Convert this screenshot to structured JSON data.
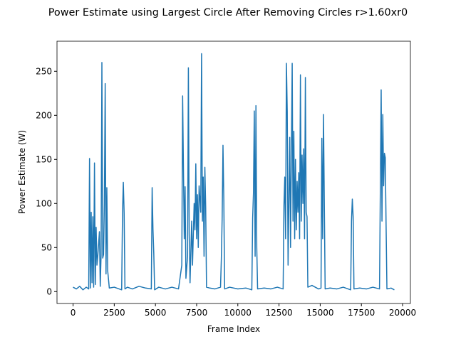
{
  "chart_data": {
    "type": "line",
    "title": "Power Estimate using Largest Circle After Removing Circles r>1.60xr0",
    "x_label": "Frame Index",
    "y_label": "Power Estimate (W)",
    "color": "#1f77b4",
    "x": [
      0,
      200,
      400,
      600,
      800,
      950,
      1000,
      1050,
      1100,
      1150,
      1200,
      1250,
      1300,
      1350,
      1400,
      1450,
      1500,
      1600,
      1650,
      1700,
      1750,
      1800,
      1850,
      1900,
      1950,
      2000,
      2050,
      2100,
      2200,
      2500,
      2800,
      2950,
      3000,
      3050,
      3100,
      3150,
      3300,
      3600,
      4000,
      4400,
      4750,
      4800,
      4850,
      4900,
      4950,
      5200,
      5600,
      6000,
      6400,
      6600,
      6650,
      6700,
      6750,
      6800,
      6850,
      6950,
      7000,
      7050,
      7100,
      7200,
      7250,
      7350,
      7400,
      7450,
      7500,
      7550,
      7600,
      7650,
      7750,
      7800,
      7850,
      7900,
      7950,
      8000,
      8050,
      8100,
      8300,
      8600,
      8950,
      9000,
      9050,
      9100,
      9150,
      9200,
      9500,
      10000,
      10500,
      10850,
      10900,
      10950,
      11000,
      11050,
      11100,
      11150,
      11200,
      11600,
      12000,
      12400,
      12750,
      12800,
      12850,
      12900,
      12950,
      13000,
      13050,
      13150,
      13200,
      13300,
      13350,
      13400,
      13450,
      13500,
      13550,
      13600,
      13650,
      13700,
      13750,
      13800,
      13850,
      13900,
      13950,
      14000,
      14050,
      14100,
      14150,
      14200,
      14250,
      14500,
      14900,
      15050,
      15100,
      15150,
      15200,
      15250,
      15300,
      15600,
      16000,
      16400,
      16850,
      16900,
      16950,
      17000,
      17050,
      17400,
      17800,
      18200,
      18600,
      18700,
      18750,
      18800,
      18850,
      18900,
      18950,
      19000,
      19050,
      19300,
      19500
    ],
    "values": [
      5,
      3,
      6,
      2,
      5,
      3,
      151,
      4,
      90,
      10,
      85,
      5,
      146,
      8,
      73,
      30,
      40,
      68,
      6,
      41,
      260,
      38,
      42,
      100,
      236,
      20,
      118,
      24,
      4,
      5,
      3,
      2,
      88,
      124,
      89,
      3,
      5,
      3,
      6,
      4,
      3,
      118,
      71,
      43,
      2,
      5,
      3,
      5,
      3,
      30,
      222,
      139,
      60,
      119,
      15,
      40,
      254,
      65,
      10,
      80,
      30,
      100,
      70,
      145,
      60,
      110,
      50,
      120,
      90,
      270,
      80,
      130,
      40,
      141,
      96,
      5,
      4,
      3,
      5,
      37,
      84,
      166,
      104,
      3,
      5,
      3,
      4,
      2,
      83,
      112,
      205,
      40,
      211,
      50,
      3,
      4,
      3,
      5,
      3,
      98,
      130,
      60,
      259,
      204,
      30,
      175,
      50,
      259,
      80,
      182,
      60,
      150,
      70,
      125,
      90,
      135,
      60,
      246,
      80,
      155,
      100,
      162,
      60,
      243,
      90,
      85,
      5,
      7,
      3,
      4,
      174,
      60,
      201,
      100,
      3,
      4,
      3,
      5,
      2,
      80,
      105,
      85,
      3,
      4,
      3,
      5,
      3,
      229,
      80,
      201,
      120,
      157,
      152,
      74,
      3,
      4,
      2
    ],
    "xlim": [
      -975,
      20475
    ],
    "ylim": [
      -13.5,
      284.1
    ],
    "xticks": [
      0,
      2500,
      5000,
      7500,
      10000,
      12500,
      15000,
      17500,
      20000
    ],
    "yticks": [
      0,
      50,
      100,
      150,
      200,
      250
    ]
  }
}
